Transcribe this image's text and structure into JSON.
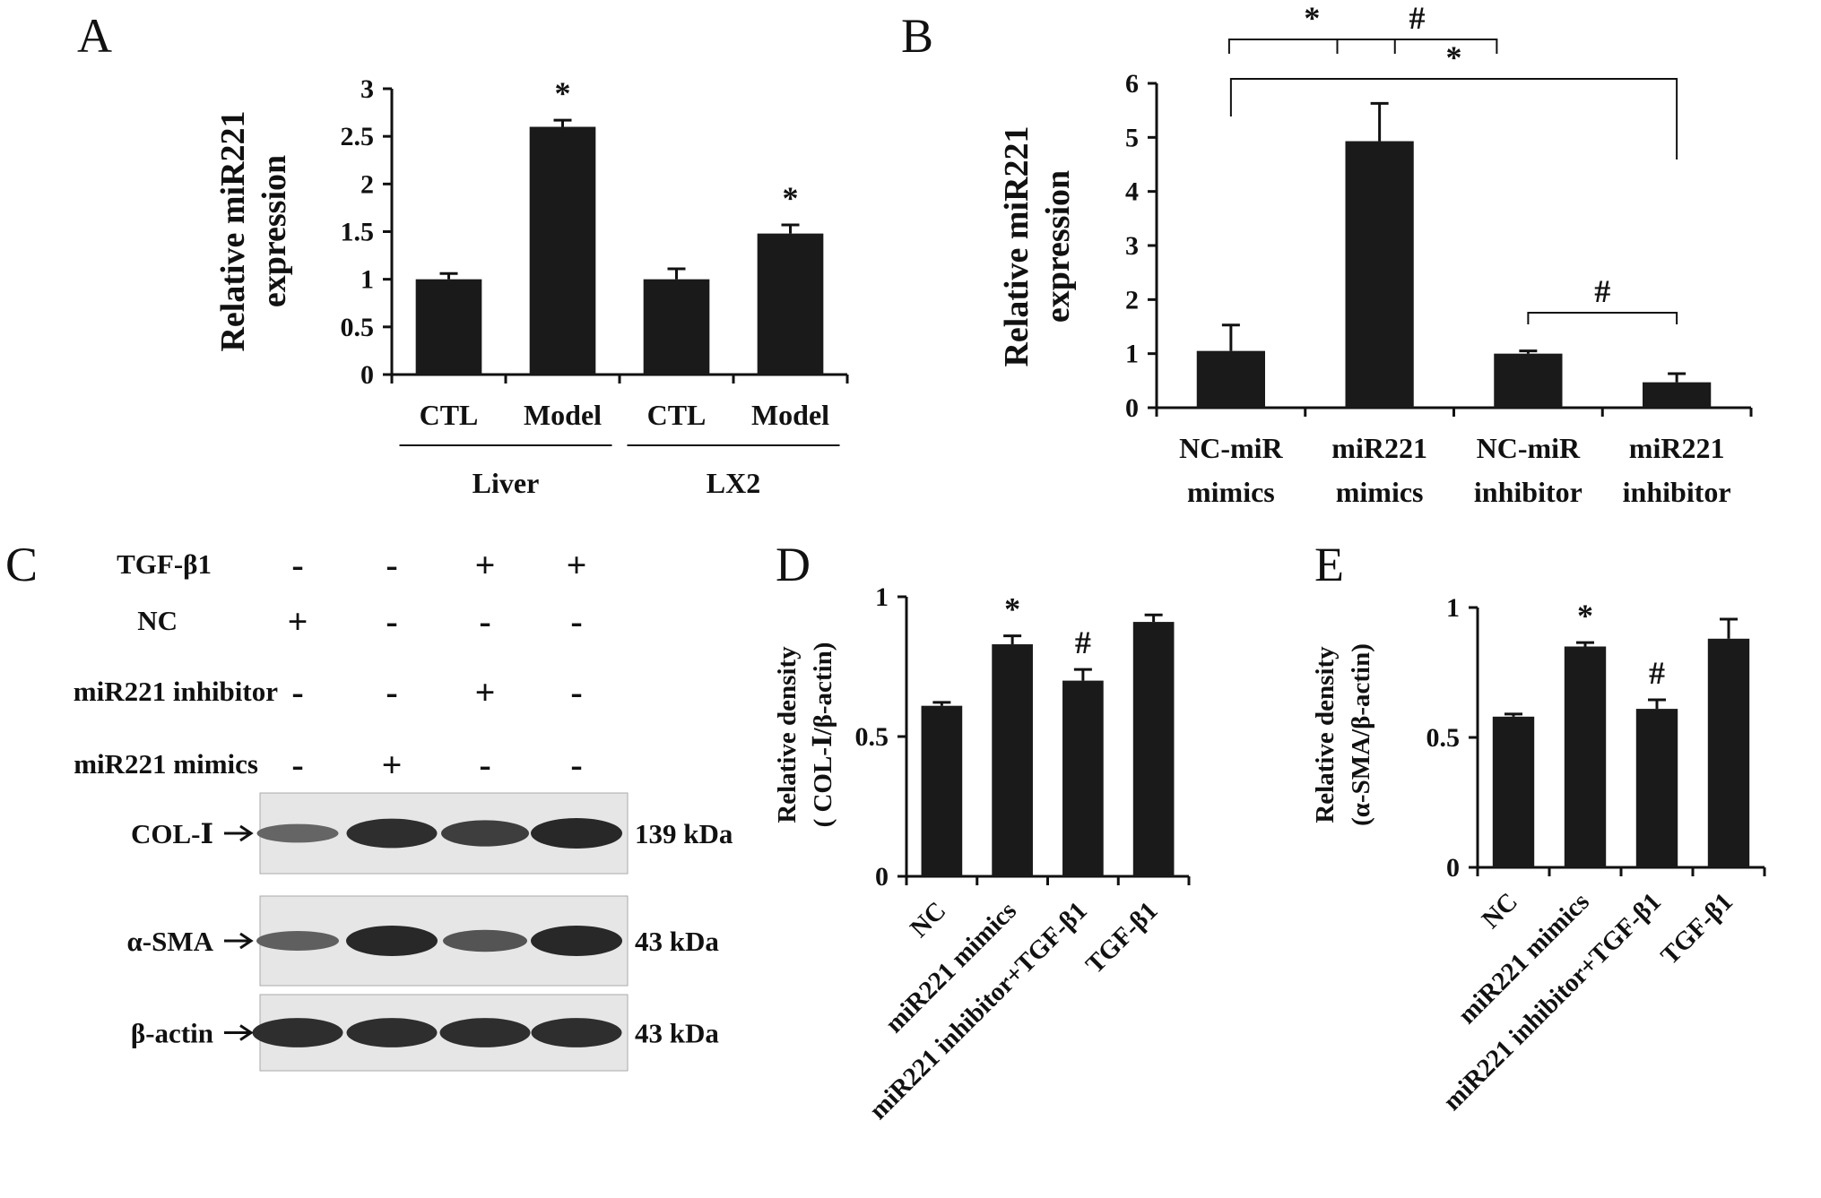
{
  "panels": {
    "A": {
      "letter": "A",
      "chart_data": {
        "type": "bar",
        "ylabel": [
          "Relative miR221",
          "expression"
        ],
        "ylim": [
          0,
          3
        ],
        "yticks": [
          "0",
          "0.5",
          "1",
          "1.5",
          "2",
          "2.5",
          "3"
        ],
        "ytick_values": [
          0,
          0.5,
          1,
          1.5,
          2,
          2.5,
          3
        ],
        "categories": [
          "CTL",
          "Model",
          "CTL",
          "Model"
        ],
        "values": [
          1.0,
          2.6,
          1.0,
          1.48
        ],
        "errors": [
          0.06,
          0.07,
          0.11,
          0.09
        ],
        "annotations": [
          "",
          "*",
          "",
          "*"
        ],
        "groups": [
          {
            "label": "Liver",
            "members": [
              0,
              1
            ]
          },
          {
            "label": "LX2",
            "members": [
              2,
              3
            ]
          }
        ]
      }
    },
    "B": {
      "letter": "B",
      "chart_data": {
        "type": "bar",
        "ylabel": [
          "Relative miR221",
          "expression"
        ],
        "ylim": [
          0,
          6
        ],
        "yticks": [
          "0",
          "1",
          "2",
          "3",
          "4",
          "5",
          "6"
        ],
        "ytick_values": [
          0,
          1,
          2,
          3,
          4,
          5,
          6
        ],
        "categories": [
          [
            "NC-miR",
            "mimics"
          ],
          [
            "miR221",
            "mimics"
          ],
          [
            "NC-miR",
            "inhibitor"
          ],
          [
            "miR221",
            "inhibitor"
          ]
        ],
        "values": [
          1.05,
          4.93,
          1.0,
          0.47
        ],
        "errors": [
          0.48,
          0.7,
          0.05,
          0.16
        ],
        "brackets": [
          {
            "from": 0,
            "to": 1,
            "label": "*"
          },
          {
            "from": 1,
            "to": 2,
            "label": "#"
          },
          {
            "from": 0,
            "to": 3,
            "label": "*"
          },
          {
            "from": 2,
            "to": 3,
            "label": "#"
          }
        ]
      }
    },
    "C": {
      "letter": "C",
      "conditions": [
        {
          "label": "TGF-β1",
          "signs": [
            "-",
            "-",
            "+",
            "+"
          ]
        },
        {
          "label": "NC",
          "signs": [
            "+",
            "-",
            "-",
            "-"
          ]
        },
        {
          "label": "miR221 inhibitor",
          "signs": [
            "-",
            "-",
            "+",
            "-"
          ]
        },
        {
          "label": "miR221 mimics",
          "signs": [
            "-",
            "+",
            "-",
            "-"
          ]
        }
      ],
      "blots": [
        {
          "label": "COL-Ⅰ",
          "size": "139 kDa",
          "intensity": [
            0.45,
            0.95,
            0.8,
            1.0
          ]
        },
        {
          "label": "α-SMA",
          "size": "43 kDa",
          "intensity": [
            0.5,
            1.0,
            0.6,
            1.0
          ]
        },
        {
          "label": "β-actin",
          "size": "43 kDa",
          "intensity": [
            0.95,
            0.95,
            0.95,
            0.95
          ]
        }
      ]
    },
    "D": {
      "letter": "D",
      "chart_data": {
        "type": "bar",
        "ylabel": [
          "Relative  density",
          "( COL-Ⅰ/β-actin)"
        ],
        "ylim": [
          0,
          1
        ],
        "yticks": [
          "0",
          "0.5",
          "1"
        ],
        "ytick_values": [
          0,
          0.5,
          1
        ],
        "categories": [
          "NC",
          "miR221 mimics",
          "miR221 inhibitor+TGF-β1",
          "TGF-β1"
        ],
        "values": [
          0.61,
          0.83,
          0.7,
          0.91
        ],
        "errors": [
          0.012,
          0.03,
          0.04,
          0.025
        ],
        "annotations": [
          "",
          "*",
          "#",
          ""
        ]
      }
    },
    "E": {
      "letter": "E",
      "chart_data": {
        "type": "bar",
        "ylabel": [
          "Relative density",
          "(α-SMA/β-actin)"
        ],
        "ylim": [
          0,
          1
        ],
        "yticks": [
          "0",
          "0.5",
          "1"
        ],
        "ytick_values": [
          0,
          0.5,
          1
        ],
        "categories": [
          "NC",
          "miR221 mimics",
          "miR221 inhibitor+TGF-β1",
          "TGF-β1"
        ],
        "values": [
          0.58,
          0.85,
          0.61,
          0.88
        ],
        "errors": [
          0.01,
          0.015,
          0.035,
          0.075
        ],
        "annotations": [
          "",
          "*",
          "#",
          ""
        ]
      }
    }
  }
}
